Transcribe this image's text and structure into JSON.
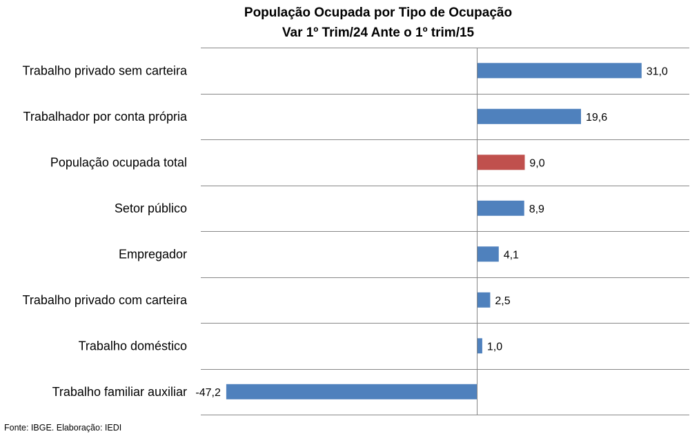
{
  "chart_data": {
    "type": "bar",
    "orientation": "horizontal",
    "title": "População Ocupada por Tipo de Ocupação",
    "subtitle": "Var 1º Trim/24 Ante o 1º trim/15",
    "categories": [
      "Trabalho privado sem carteira",
      "Trabalhador por conta própria",
      "População ocupada total",
      "Setor público",
      "Empregador",
      "Trabalho privado com carteira",
      "Trabalho doméstico",
      "Trabalho familiar auxiliar"
    ],
    "values": [
      31.0,
      19.6,
      9.0,
      8.9,
      4.1,
      2.5,
      1.0,
      -47.2
    ],
    "data_labels": [
      "31,0",
      "19,6",
      "9,0",
      "8,9",
      "4,1",
      "2,5",
      "1,0",
      "-47,2"
    ],
    "highlight_index": 2,
    "colors": {
      "bar": "#4f81bd",
      "highlight": "#c0504d",
      "grid": "#868686"
    },
    "xlim": [
      -52,
      40
    ],
    "grid": true,
    "legend": false
  },
  "source": "Fonte: IBGE. Elaboração: IEDI"
}
